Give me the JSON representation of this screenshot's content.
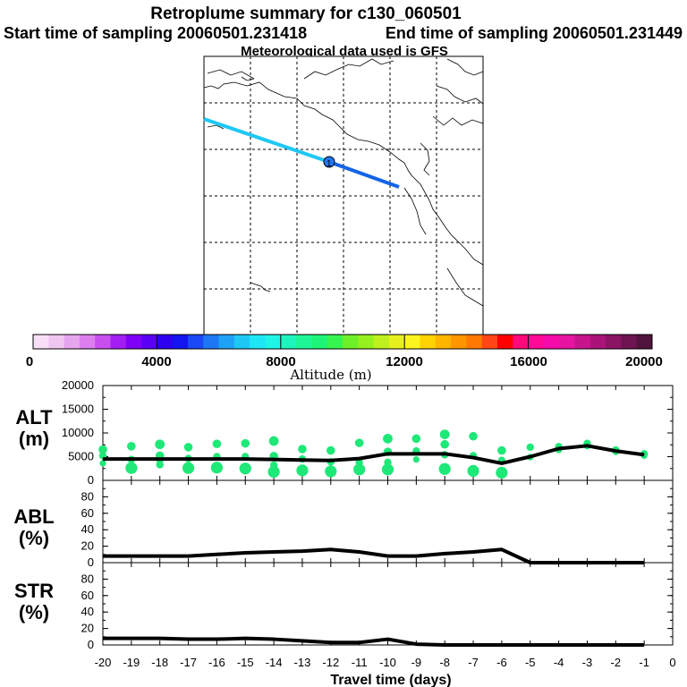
{
  "header": {
    "title": "Retroplume summary for c130_060501",
    "start_time": "Start time of sampling 20060501.231418",
    "end_time": "End time of sampling 20060501.231449",
    "met_data": "Meteorological data used is GFS"
  },
  "colors": {
    "trajectory_old": "#1ec8f5",
    "trajectory_new": "#1464e6",
    "plume_dots": "#1ee878",
    "median_line": "#000000"
  },
  "colorbar": {
    "label": "Altitude (m)",
    "ticks": [
      "0",
      "4000",
      "8000",
      "12000",
      "16000",
      "20000"
    ],
    "colors": [
      "#f7e0f7",
      "#efc6ef",
      "#e6a6ee",
      "#dc7eee",
      "#c84ef0",
      "#a41ef3",
      "#8000f5",
      "#5a00f5",
      "#2d00f0",
      "#1414f0",
      "#1a48f5",
      "#1e78f5",
      "#1ea2f5",
      "#1ec8f5",
      "#1ee6f5",
      "#1ef5e6",
      "#1ef5be",
      "#1ef596",
      "#1ef578",
      "#36f550",
      "#6ef028",
      "#96f01e",
      "#bef01e",
      "#e6f01e",
      "#fff51e",
      "#ffd200",
      "#ffb400",
      "#ff9600",
      "#ff7800",
      "#ff4614",
      "#ff0000",
      "#ff0a78",
      "#ff0a96",
      "#f50aaa",
      "#e614a0",
      "#c8148c",
      "#aa1478",
      "#8c1464",
      "#6e1450",
      "#50143c"
    ]
  },
  "chart_data": [
    {
      "type": "line",
      "panel": "ALT",
      "ylabel": "ALT (m)",
      "xlabel": "Travel time (days)",
      "x": [
        -20,
        -19,
        -18,
        -17,
        -16,
        -15,
        -14,
        -13,
        -12,
        -11,
        -10,
        -9,
        -8,
        -7,
        -6,
        -5,
        -4,
        -3,
        -2,
        -1
      ],
      "median": [
        4500,
        4500,
        4500,
        4500,
        4500,
        4500,
        4400,
        4300,
        4200,
        4600,
        5600,
        5600,
        5600,
        4800,
        3600,
        5000,
        6700,
        7300,
        6200,
        5400
      ],
      "scatter_series": [
        [
          6500,
          5200,
          3600
        ],
        [
          7200,
          4400,
          2600
        ],
        [
          7600,
          5200,
          3300,
          4000
        ],
        [
          7000,
          4600,
          2600
        ],
        [
          7700,
          5000,
          2700
        ],
        [
          7800,
          5000,
          2500
        ],
        [
          8300,
          5100,
          3200,
          1800
        ],
        [
          6600,
          4500,
          2100
        ],
        [
          6300,
          3900,
          1900
        ],
        [
          7900,
          3800,
          2300
        ],
        [
          8800,
          6000,
          3800,
          2300
        ],
        [
          8800,
          6200,
          4400
        ],
        [
          9700,
          7600,
          5400,
          2400
        ],
        [
          9300,
          5200,
          2000
        ],
        [
          6300,
          4200,
          1600
        ],
        [
          7000,
          4900
        ],
        [
          7100,
          6400
        ],
        [
          7800,
          7200
        ],
        [
          6400,
          6000
        ],
        [
          5600,
          5200
        ]
      ],
      "yticks": [
        "0",
        "5000",
        "10000",
        "15000",
        "20000"
      ],
      "ylim": [
        0,
        20000
      ],
      "xticks": [
        "-20",
        "-19",
        "-18",
        "-17",
        "-16",
        "-15",
        "-14",
        "-13",
        "-12",
        "-11",
        "-10",
        "-9",
        "-8",
        "-7",
        "-6",
        "-5",
        "-4",
        "-3",
        "-2",
        "-1",
        "0"
      ]
    },
    {
      "type": "line",
      "panel": "ABL",
      "ylabel": "ABL (%)",
      "x": [
        -20,
        -19,
        -18,
        -17,
        -16,
        -15,
        -14,
        -13,
        -12,
        -11,
        -10,
        -9,
        -8,
        -7,
        -6,
        -5,
        -4,
        -3,
        -2,
        -1
      ],
      "values": [
        8,
        8,
        8,
        8,
        10,
        12,
        13,
        14,
        16,
        13,
        8,
        8,
        11,
        13,
        16,
        0,
        0,
        0,
        0,
        0
      ],
      "yticks": [
        "0",
        "20",
        "40",
        "60",
        "80"
      ],
      "ylim": [
        0,
        100
      ]
    },
    {
      "type": "line",
      "panel": "STR",
      "ylabel": "STR (%)",
      "x": [
        -20,
        -19,
        -18,
        -17,
        -16,
        -15,
        -14,
        -13,
        -12,
        -11,
        -10,
        -9,
        -8,
        -7,
        -6,
        -5,
        -4,
        -3,
        -2,
        -1
      ],
      "values": [
        8,
        8,
        8,
        7,
        7,
        8,
        7,
        5,
        3,
        3,
        7,
        1,
        0,
        0,
        0,
        0,
        0,
        0,
        0,
        0
      ],
      "yticks": [
        "0",
        "20",
        "40",
        "60",
        "80"
      ],
      "ylim": [
        0,
        100
      ]
    }
  ]
}
